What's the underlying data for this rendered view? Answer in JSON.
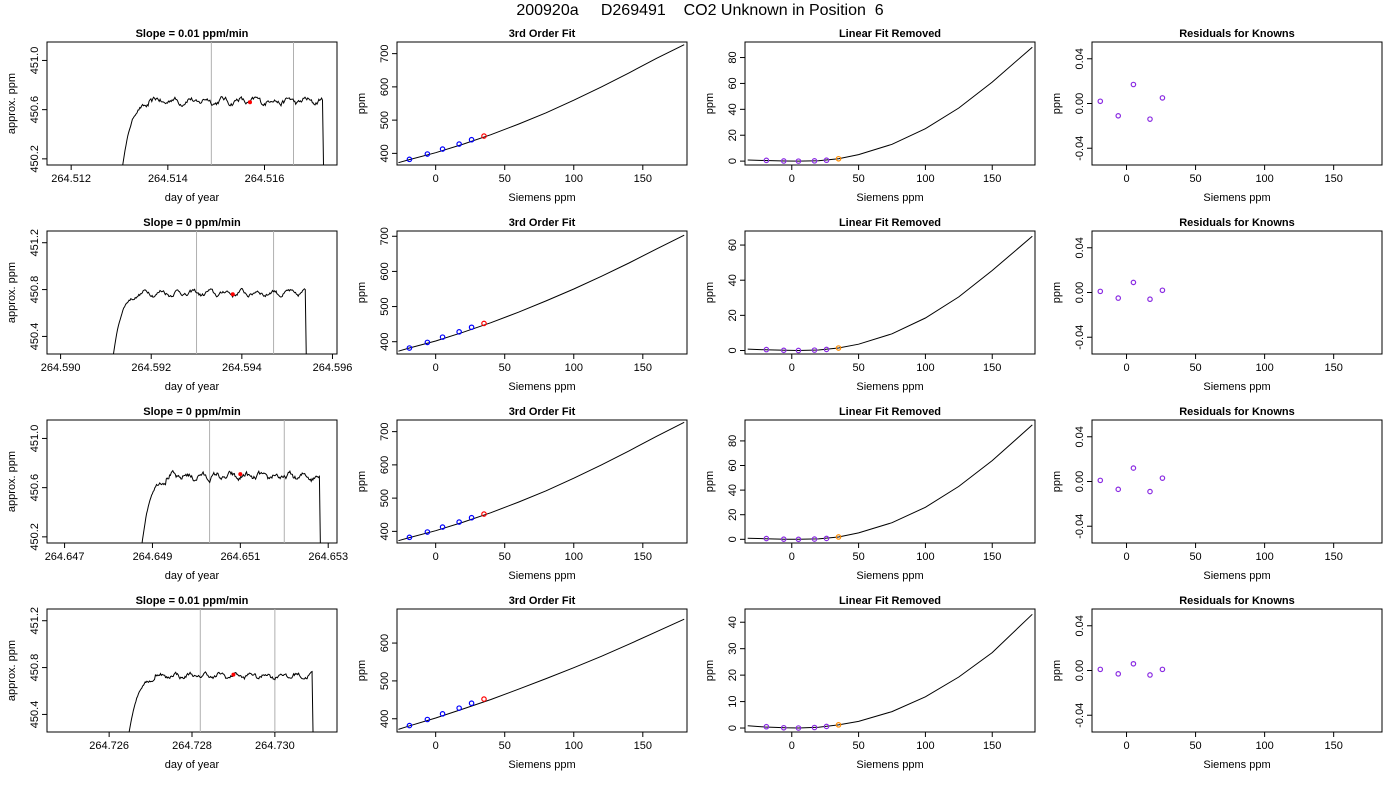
{
  "page_title": "200920a     D269491    CO2 Unknown in Position  6",
  "colors": {
    "axis": "#000000",
    "trace": "#000000",
    "window_lines": "#b0b0b0",
    "known_points": "#0000ff",
    "unknown_point": "#ff0000",
    "residual_points": "#8a2be2",
    "linear_removed_unknown": "#ff8c00"
  },
  "chart_data": [
    {
      "type": "line",
      "title": "Slope =  0.01  ppm/min",
      "xlabel": "day of year",
      "ylabel": "approx. ppm",
      "xlim": [
        264.5115,
        264.5175
      ],
      "ylim": [
        450.15,
        451.15
      ],
      "xticks": [
        "264.512",
        "264.514",
        "264.516"
      ],
      "xtick_values": [
        264.512,
        264.514,
        264.516
      ],
      "yticks": [
        "450.2",
        "450.6",
        "451.0"
      ],
      "ytick_values": [
        450.2,
        450.6,
        451.0
      ],
      "x_start": 264.513,
      "x_rise_end": 264.5136,
      "x_end": 264.5172,
      "plateau_level": 450.67,
      "plateau_noise": 0.025,
      "window_lines": [
        264.5149,
        264.5166
      ],
      "red_point": [
        264.5157,
        450.66
      ]
    },
    {
      "type": "line",
      "title": "3rd Order Fit",
      "xlabel": "Siemens ppm",
      "ylabel": "ppm",
      "xlim": [
        -28,
        182
      ],
      "ylim": [
        365,
        735
      ],
      "xticks": [
        "0",
        "50",
        "100",
        "150"
      ],
      "xtick_values": [
        0,
        50,
        100,
        150
      ],
      "yticks": [
        "400",
        "500",
        "600",
        "700"
      ],
      "ytick_values": [
        400,
        500,
        600,
        700
      ],
      "curve_x": [
        -27,
        -20,
        0,
        20,
        40,
        60,
        80,
        100,
        120,
        140,
        160,
        180
      ],
      "curve_y": [
        372,
        380,
        402,
        428,
        456,
        488,
        522,
        560,
        600,
        642,
        686,
        727
      ],
      "known_points": [
        [
          -19,
          382
        ],
        [
          -6,
          398
        ],
        [
          5,
          413
        ],
        [
          17,
          428
        ],
        [
          26,
          441
        ]
      ],
      "unknown_point": [
        35,
        452
      ]
    },
    {
      "type": "line",
      "title": "Linear Fit Removed",
      "xlabel": "Siemens ppm",
      "ylabel": "ppm",
      "xlim": [
        -35,
        182
      ],
      "ylim": [
        -3,
        92
      ],
      "xticks": [
        "0",
        "50",
        "100",
        "150"
      ],
      "xtick_values": [
        0,
        50,
        100,
        150
      ],
      "yticks": [
        "0",
        "20",
        "40",
        "60",
        "80"
      ],
      "ytick_values": [
        0,
        20,
        40,
        60,
        80
      ],
      "curve_x": [
        -33,
        -20,
        -5,
        5,
        20,
        35,
        50,
        75,
        100,
        125,
        150,
        180
      ],
      "curve_y": [
        0.9,
        0.5,
        0.1,
        0.0,
        0.3,
        1.8,
        5,
        13,
        25,
        41,
        61,
        88
      ],
      "known_points": [
        [
          -19,
          0.6
        ],
        [
          -6,
          0.1
        ],
        [
          5,
          0.0
        ],
        [
          17,
          0.2
        ],
        [
          26,
          0.7
        ]
      ],
      "unknown_point": [
        35,
        1.8
      ]
    },
    {
      "type": "scatter",
      "title": "Residuals for Knowns",
      "xlabel": "Siemens ppm",
      "ylabel": "ppm",
      "xlim": [
        -25,
        185
      ],
      "ylim": [
        -0.055,
        0.055
      ],
      "xticks": [
        "0",
        "50",
        "100",
        "150"
      ],
      "xtick_values": [
        0,
        50,
        100,
        150
      ],
      "yticks": [
        "-0.04",
        "0.00",
        "0.04"
      ],
      "ytick_values": [
        -0.04,
        0.0,
        0.04
      ],
      "points": [
        [
          -19,
          0.002
        ],
        [
          -6,
          -0.011
        ],
        [
          5,
          0.017
        ],
        [
          17,
          -0.014
        ],
        [
          26,
          0.005
        ]
      ]
    },
    {
      "type": "line",
      "title": "Slope =  0  ppm/min",
      "xlabel": "day of year",
      "ylabel": "approx. ppm",
      "xlim": [
        264.5897,
        264.5961
      ],
      "ylim": [
        450.25,
        451.3
      ],
      "xticks": [
        "264.590",
        "264.592",
        "264.594",
        "264.596"
      ],
      "xtick_values": [
        264.59,
        264.592,
        264.594,
        264.596
      ],
      "yticks": [
        "450.4",
        "450.8",
        "451.2"
      ],
      "ytick_values": [
        450.4,
        450.8,
        451.2
      ],
      "x_start": 264.5911,
      "x_rise_end": 264.5917,
      "x_end": 264.5954,
      "plateau_level": 450.77,
      "plateau_noise": 0.02,
      "window_lines": [
        264.593,
        264.5947
      ],
      "red_point": [
        264.5938,
        450.76
      ]
    },
    {
      "type": "line",
      "title": "3rd Order Fit",
      "xlabel": "Siemens ppm",
      "ylabel": "ppm",
      "xlim": [
        -28,
        182
      ],
      "ylim": [
        365,
        715
      ],
      "xticks": [
        "0",
        "50",
        "100",
        "150"
      ],
      "xtick_values": [
        0,
        50,
        100,
        150
      ],
      "yticks": [
        "400",
        "500",
        "600",
        "700"
      ],
      "ytick_values": [
        400,
        500,
        600,
        700
      ],
      "curve_x": [
        -27,
        -20,
        0,
        20,
        40,
        60,
        80,
        100,
        120,
        140,
        160,
        180
      ],
      "curve_y": [
        373,
        381,
        402,
        427,
        454,
        484,
        516,
        550,
        586,
        624,
        664,
        703
      ],
      "known_points": [
        [
          -19,
          382
        ],
        [
          -6,
          398
        ],
        [
          5,
          413
        ],
        [
          17,
          428
        ],
        [
          26,
          441
        ]
      ],
      "unknown_point": [
        35,
        452
      ]
    },
    {
      "type": "line",
      "title": "Linear Fit Removed",
      "xlabel": "Siemens ppm",
      "ylabel": "ppm",
      "xlim": [
        -35,
        182
      ],
      "ylim": [
        -2,
        68
      ],
      "xticks": [
        "0",
        "50",
        "100",
        "150"
      ],
      "xtick_values": [
        0,
        50,
        100,
        150
      ],
      "yticks": [
        "0",
        "20",
        "40",
        "60"
      ],
      "ytick_values": [
        0,
        20,
        40,
        60
      ],
      "curve_x": [
        -33,
        -20,
        -5,
        5,
        20,
        35,
        50,
        75,
        100,
        125,
        150,
        180
      ],
      "curve_y": [
        0.8,
        0.4,
        0.1,
        0.0,
        0.3,
        1.4,
        3.6,
        9.5,
        18.5,
        30.5,
        45.5,
        65
      ],
      "known_points": [
        [
          -19,
          0.5
        ],
        [
          -6,
          0.1
        ],
        [
          5,
          0.0
        ],
        [
          17,
          0.2
        ],
        [
          26,
          0.6
        ]
      ],
      "unknown_point": [
        35,
        1.4
      ]
    },
    {
      "type": "scatter",
      "title": "Residuals for Knowns",
      "xlabel": "Siemens ppm",
      "ylabel": "ppm",
      "xlim": [
        -25,
        185
      ],
      "ylim": [
        -0.055,
        0.055
      ],
      "xticks": [
        "0",
        "50",
        "100",
        "150"
      ],
      "xtick_values": [
        0,
        50,
        100,
        150
      ],
      "yticks": [
        "-0.04",
        "0.00",
        "0.04"
      ],
      "ytick_values": [
        -0.04,
        0.0,
        0.04
      ],
      "points": [
        [
          -19,
          0.001
        ],
        [
          -6,
          -0.005
        ],
        [
          5,
          0.009
        ],
        [
          17,
          -0.006
        ],
        [
          26,
          0.002
        ]
      ]
    },
    {
      "type": "line",
      "title": "Slope =  0  ppm/min",
      "xlabel": "day of year",
      "ylabel": "approx. ppm",
      "xlim": [
        264.6466,
        264.6532
      ],
      "ylim": [
        450.15,
        451.15
      ],
      "xticks": [
        "264.647",
        "264.649",
        "264.651",
        "264.653"
      ],
      "xtick_values": [
        264.647,
        264.649,
        264.651,
        264.653
      ],
      "yticks": [
        "450.2",
        "450.6",
        "451.0"
      ],
      "ytick_values": [
        450.2,
        450.6,
        451.0
      ],
      "x_start": 264.6487,
      "x_rise_end": 264.6493,
      "x_end": 264.6528,
      "plateau_level": 450.69,
      "plateau_noise": 0.025,
      "window_lines": [
        264.6503,
        264.652
      ],
      "red_point": [
        264.651,
        450.71
      ]
    },
    {
      "type": "line",
      "title": "3rd Order Fit",
      "xlabel": "Siemens ppm",
      "ylabel": "ppm",
      "xlim": [
        -28,
        182
      ],
      "ylim": [
        365,
        735
      ],
      "xticks": [
        "0",
        "50",
        "100",
        "150"
      ],
      "xtick_values": [
        0,
        50,
        100,
        150
      ],
      "yticks": [
        "400",
        "500",
        "600",
        "700"
      ],
      "ytick_values": [
        400,
        500,
        600,
        700
      ],
      "curve_x": [
        -27,
        -20,
        0,
        20,
        40,
        60,
        80,
        100,
        120,
        140,
        160,
        180
      ],
      "curve_y": [
        372,
        380,
        402,
        428,
        456,
        488,
        522,
        560,
        600,
        642,
        686,
        728
      ],
      "known_points": [
        [
          -19,
          382
        ],
        [
          -6,
          398
        ],
        [
          5,
          413
        ],
        [
          17,
          428
        ],
        [
          26,
          441
        ]
      ],
      "unknown_point": [
        35,
        452
      ]
    },
    {
      "type": "line",
      "title": "Linear Fit Removed",
      "xlabel": "Siemens ppm",
      "ylabel": "ppm",
      "xlim": [
        -35,
        182
      ],
      "ylim": [
        -3,
        97
      ],
      "xticks": [
        "0",
        "50",
        "100",
        "150"
      ],
      "xtick_values": [
        0,
        50,
        100,
        150
      ],
      "yticks": [
        "0",
        "20",
        "40",
        "60",
        "80"
      ],
      "ytick_values": [
        0,
        20,
        40,
        60,
        80
      ],
      "curve_x": [
        -33,
        -20,
        -5,
        5,
        20,
        35,
        50,
        75,
        100,
        125,
        150,
        180
      ],
      "curve_y": [
        0.9,
        0.5,
        0.1,
        0.0,
        0.3,
        1.9,
        5.2,
        13.5,
        26,
        43,
        64,
        93
      ],
      "known_points": [
        [
          -19,
          0.6
        ],
        [
          -6,
          0.1
        ],
        [
          5,
          0.0
        ],
        [
          17,
          0.2
        ],
        [
          26,
          0.7
        ]
      ],
      "unknown_point": [
        35,
        1.9
      ]
    },
    {
      "type": "scatter",
      "title": "Residuals for Knowns",
      "xlabel": "Siemens ppm",
      "ylabel": "ppm",
      "xlim": [
        -25,
        185
      ],
      "ylim": [
        -0.055,
        0.055
      ],
      "xticks": [
        "0",
        "50",
        "100",
        "150"
      ],
      "xtick_values": [
        0,
        50,
        100,
        150
      ],
      "yticks": [
        "-0.04",
        "0.00",
        "0.04"
      ],
      "ytick_values": [
        -0.04,
        0.0,
        0.04
      ],
      "points": [
        [
          -19,
          0.001
        ],
        [
          -6,
          -0.007
        ],
        [
          5,
          0.012
        ],
        [
          17,
          -0.009
        ],
        [
          26,
          0.003
        ]
      ]
    },
    {
      "type": "line",
      "title": "Slope =  0.01  ppm/min",
      "xlabel": "day of year",
      "ylabel": "approx. ppm",
      "xlim": [
        264.7245,
        264.7315
      ],
      "ylim": [
        450.25,
        451.3
      ],
      "xticks": [
        "264.726",
        "264.728",
        "264.730"
      ],
      "xtick_values": [
        264.726,
        264.728,
        264.73
      ],
      "yticks": [
        "450.4",
        "450.8",
        "451.2"
      ],
      "ytick_values": [
        450.4,
        450.8,
        451.2
      ],
      "x_start": 264.7264,
      "x_rise_end": 264.7271,
      "x_end": 264.7309,
      "plateau_level": 450.73,
      "plateau_noise": 0.02,
      "window_lines": [
        264.7282,
        264.73
      ],
      "red_point": [
        264.729,
        450.74
      ]
    },
    {
      "type": "line",
      "title": "3rd Order Fit",
      "xlabel": "Siemens ppm",
      "ylabel": "ppm",
      "xlim": [
        -28,
        182
      ],
      "ylim": [
        365,
        690
      ],
      "xticks": [
        "0",
        "50",
        "100",
        "150"
      ],
      "xtick_values": [
        0,
        50,
        100,
        150
      ],
      "yticks": [
        "400",
        "500",
        "600"
      ],
      "ytick_values": [
        400,
        500,
        600
      ],
      "curve_x": [
        -27,
        -20,
        0,
        20,
        40,
        60,
        80,
        100,
        120,
        140,
        160,
        180
      ],
      "curve_y": [
        372,
        380,
        402,
        426,
        451,
        478,
        506,
        535,
        565,
        597,
        630,
        663
      ],
      "known_points": [
        [
          -19,
          382
        ],
        [
          -6,
          398
        ],
        [
          5,
          413
        ],
        [
          17,
          428
        ],
        [
          26,
          441
        ]
      ],
      "unknown_point": [
        35,
        452
      ]
    },
    {
      "type": "line",
      "title": "Linear Fit Removed",
      "xlabel": "Siemens ppm",
      "ylabel": "ppm",
      "xlim": [
        -35,
        182
      ],
      "ylim": [
        -1.5,
        45
      ],
      "xticks": [
        "0",
        "50",
        "100",
        "150"
      ],
      "xtick_values": [
        0,
        50,
        100,
        150
      ],
      "yticks": [
        "0",
        "10",
        "20",
        "30",
        "40"
      ],
      "ytick_values": [
        0,
        10,
        20,
        30,
        40
      ],
      "curve_x": [
        -33,
        -20,
        -5,
        5,
        20,
        35,
        50,
        75,
        100,
        125,
        150,
        180
      ],
      "curve_y": [
        0.9,
        0.4,
        0.1,
        0.0,
        0.3,
        1.2,
        2.5,
        6.2,
        11.8,
        19.3,
        28.5,
        43
      ],
      "known_points": [
        [
          -19,
          0.5
        ],
        [
          -6,
          0.1
        ],
        [
          5,
          0.0
        ],
        [
          17,
          0.2
        ],
        [
          26,
          0.6
        ]
      ],
      "unknown_point": [
        35,
        1.2
      ]
    },
    {
      "type": "scatter",
      "title": "Residuals for Knowns",
      "xlabel": "Siemens ppm",
      "ylabel": "ppm",
      "xlim": [
        -25,
        185
      ],
      "ylim": [
        -0.055,
        0.055
      ],
      "xticks": [
        "0",
        "50",
        "100",
        "150"
      ],
      "xtick_values": [
        0,
        50,
        100,
        150
      ],
      "yticks": [
        "-0.04",
        "0.00",
        "0.04"
      ],
      "ytick_values": [
        -0.04,
        0.0,
        0.04
      ],
      "points": [
        [
          -19,
          0.001
        ],
        [
          -6,
          -0.003
        ],
        [
          5,
          0.006
        ],
        [
          17,
          -0.004
        ],
        [
          26,
          0.001
        ]
      ]
    }
  ]
}
